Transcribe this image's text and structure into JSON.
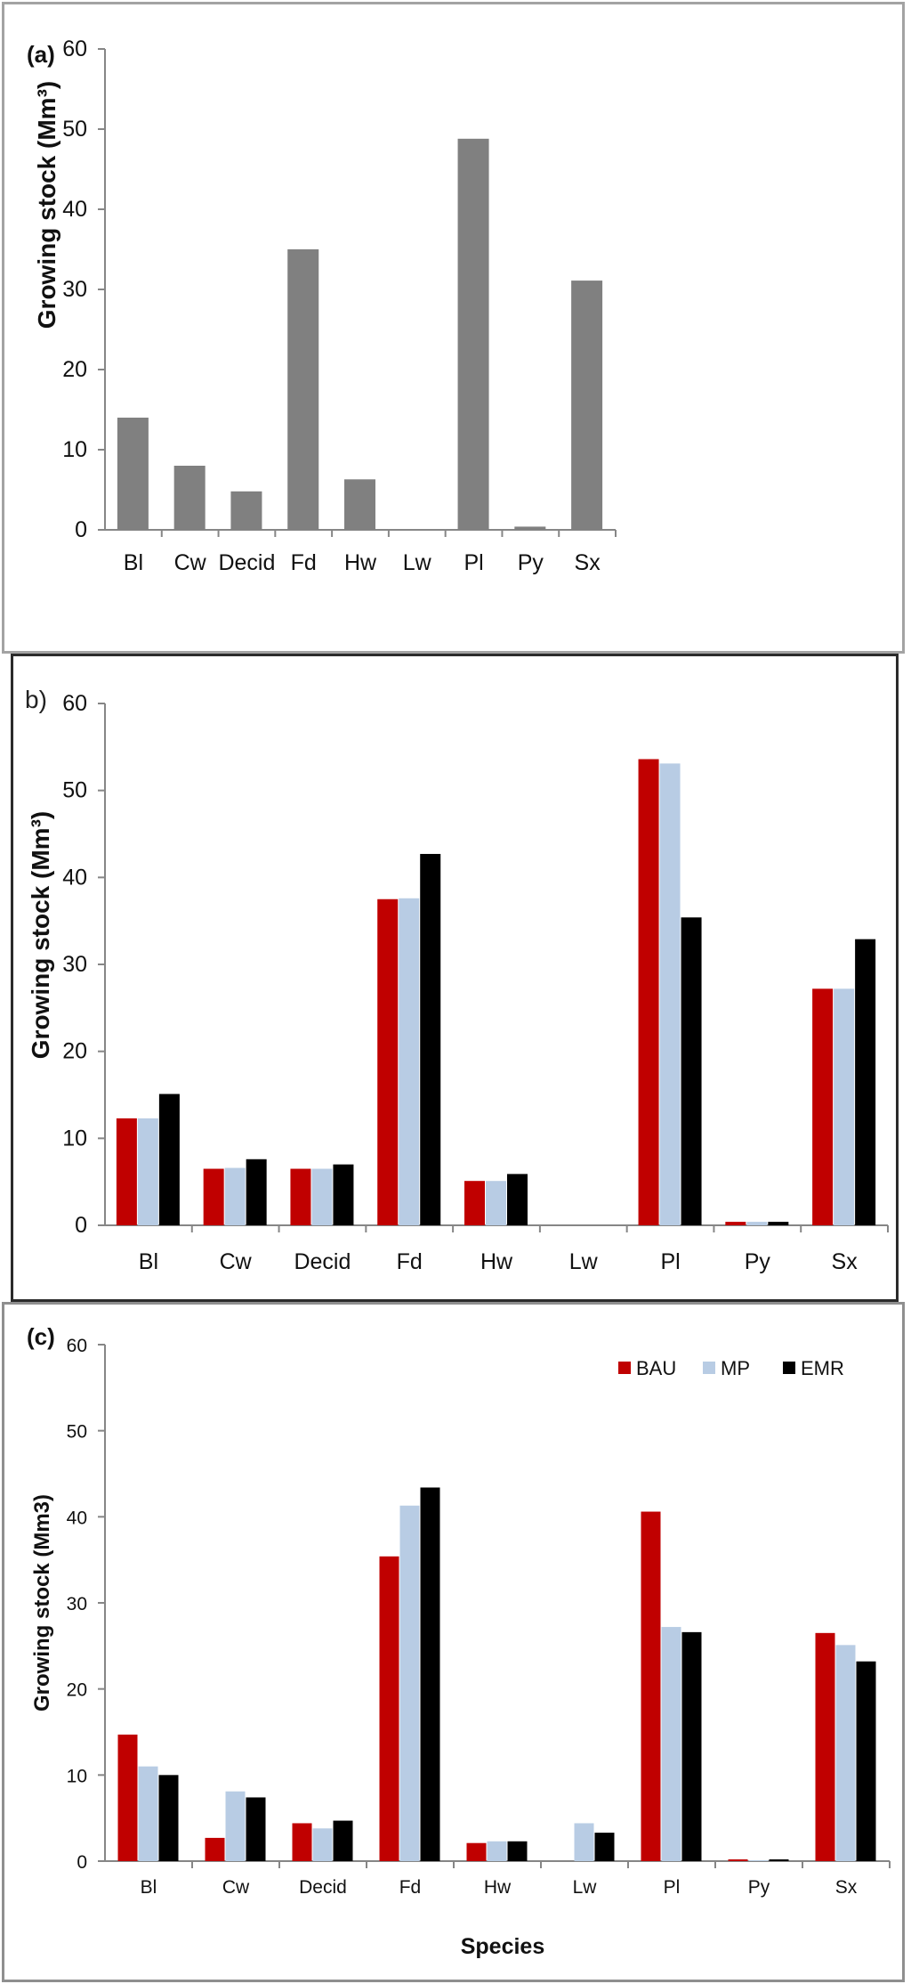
{
  "colors": {
    "BAU": "#c00000",
    "MP": "#b8cce4",
    "EMR": "#000000",
    "single": "#808080"
  },
  "chart_data": [
    {
      "type": "bar",
      "panel": "(a)",
      "title": "",
      "xlabel": "",
      "ylabel": "Growing stock (Mm³)",
      "ylim": [
        0,
        60
      ],
      "yticks": [
        0,
        10,
        20,
        30,
        40,
        50,
        60
      ],
      "categories": [
        "Bl",
        "Cw",
        "Decid",
        "Fd",
        "Hw",
        "Lw",
        "Pl",
        "Py",
        "Sx"
      ],
      "series": [
        {
          "name": "",
          "values": [
            14,
            8,
            4.8,
            35,
            6.3,
            0,
            48.8,
            0.4,
            31.1
          ]
        }
      ]
    },
    {
      "type": "bar",
      "panel": "b)",
      "title": "",
      "xlabel": "",
      "ylabel": "Growing stock (Mm³)",
      "ylim": [
        0,
        60
      ],
      "yticks": [
        0,
        10,
        20,
        30,
        40,
        50,
        60
      ],
      "categories": [
        "Bl",
        "Cw",
        "Decid",
        "Fd",
        "Hw",
        "Lw",
        "Pl",
        "Py",
        "Sx"
      ],
      "series": [
        {
          "name": "BAU",
          "values": [
            12.3,
            6.5,
            6.5,
            37.5,
            5.1,
            0,
            53.6,
            0.4,
            27.2
          ]
        },
        {
          "name": "MP",
          "values": [
            12.3,
            6.6,
            6.5,
            37.6,
            5.1,
            0,
            53.1,
            0.4,
            27.2
          ]
        },
        {
          "name": "EMR",
          "values": [
            15.1,
            7.6,
            7.0,
            42.7,
            5.9,
            0,
            35.4,
            0.4,
            32.9
          ]
        }
      ]
    },
    {
      "type": "bar",
      "panel": "(c)",
      "title": "",
      "xlabel": "Species",
      "ylabel": "Growing stock (Mm3)",
      "ylim": [
        0,
        60
      ],
      "yticks": [
        0,
        10,
        20,
        30,
        40,
        50,
        60
      ],
      "legend": "top-right",
      "categories": [
        "Bl",
        "Cw",
        "Decid",
        "Fd",
        "Hw",
        "Lw",
        "Pl",
        "Py",
        "Sx"
      ],
      "series": [
        {
          "name": "BAU",
          "values": [
            14.7,
            2.7,
            4.4,
            35.4,
            2.1,
            0,
            40.6,
            0.2,
            26.5
          ]
        },
        {
          "name": "MP",
          "values": [
            11.0,
            8.1,
            3.8,
            41.3,
            2.3,
            4.4,
            27.2,
            0.1,
            25.1
          ]
        },
        {
          "name": "EMR",
          "values": [
            10.0,
            7.4,
            4.7,
            43.4,
            2.3,
            3.3,
            26.6,
            0.2,
            23.2
          ]
        }
      ]
    }
  ]
}
